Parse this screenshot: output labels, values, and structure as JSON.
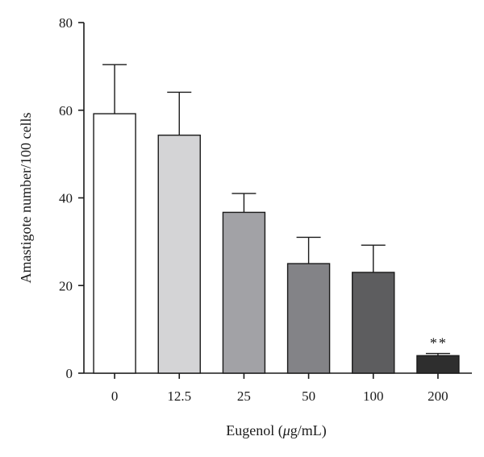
{
  "chart_data": {
    "type": "bar",
    "title": "",
    "xlabel_prefix": "Eugenol (",
    "xlabel_unit_italic": "μ",
    "xlabel_suffix": "g/mL)",
    "ylabel": "Amastigote number/100 cells",
    "categories": [
      "0",
      "12.5",
      "25",
      "50",
      "100",
      "200"
    ],
    "values": [
      59.2,
      54.3,
      36.7,
      25.0,
      23.0,
      4.0
    ],
    "errors": [
      11.2,
      9.8,
      4.3,
      6.0,
      6.2,
      0.5
    ],
    "colors": [
      "#ffffff",
      "#d4d4d6",
      "#a2a2a6",
      "#838387",
      "#5d5d5f",
      "#2e2e2e"
    ],
    "annotations": [
      {
        "category": "200",
        "text": "**"
      }
    ],
    "ylim": [
      0,
      80
    ],
    "yticks": [
      "0",
      "20",
      "40",
      "60",
      "80"
    ],
    "grid": false,
    "legend": "none"
  }
}
